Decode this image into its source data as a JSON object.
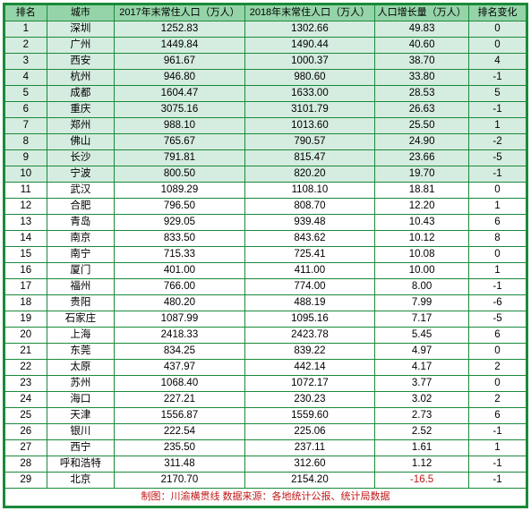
{
  "columns": [
    "排名",
    "城市",
    "2017年末常住人口（万人）",
    "2018年末常住人口（万人）",
    "人口增长量（万人）",
    "排名变化"
  ],
  "highlight_rows": 10,
  "neg_color": "#c01818",
  "rows": [
    [
      "1",
      "深圳",
      "1252.83",
      "1302.66",
      "49.83",
      "0"
    ],
    [
      "2",
      "广州",
      "1449.84",
      "1490.44",
      "40.60",
      "0"
    ],
    [
      "3",
      "西安",
      "961.67",
      "1000.37",
      "38.70",
      "4"
    ],
    [
      "4",
      "杭州",
      "946.80",
      "980.60",
      "33.80",
      "-1"
    ],
    [
      "5",
      "成都",
      "1604.47",
      "1633.00",
      "28.53",
      "5"
    ],
    [
      "6",
      "重庆",
      "3075.16",
      "3101.79",
      "26.63",
      "-1"
    ],
    [
      "7",
      "郑州",
      "988.10",
      "1013.60",
      "25.50",
      "1"
    ],
    [
      "8",
      "佛山",
      "765.67",
      "790.57",
      "24.90",
      "-2"
    ],
    [
      "9",
      "长沙",
      "791.81",
      "815.47",
      "23.66",
      "-5"
    ],
    [
      "10",
      "宁波",
      "800.50",
      "820.20",
      "19.70",
      "-1"
    ],
    [
      "11",
      "武汉",
      "1089.29",
      "1108.10",
      "18.81",
      "0"
    ],
    [
      "12",
      "合肥",
      "796.50",
      "808.70",
      "12.20",
      "1"
    ],
    [
      "13",
      "青岛",
      "929.05",
      "939.48",
      "10.43",
      "6"
    ],
    [
      "14",
      "南京",
      "833.50",
      "843.62",
      "10.12",
      "8"
    ],
    [
      "15",
      "南宁",
      "715.33",
      "725.41",
      "10.08",
      "0"
    ],
    [
      "16",
      "厦门",
      "401.00",
      "411.00",
      "10.00",
      "1"
    ],
    [
      "17",
      "福州",
      "766.00",
      "774.00",
      "8.00",
      "-1"
    ],
    [
      "18",
      "贵阳",
      "480.20",
      "488.19",
      "7.99",
      "-6"
    ],
    [
      "19",
      "石家庄",
      "1087.99",
      "1095.16",
      "7.17",
      "-5"
    ],
    [
      "20",
      "上海",
      "2418.33",
      "2423.78",
      "5.45",
      "6"
    ],
    [
      "21",
      "东莞",
      "834.25",
      "839.22",
      "4.97",
      "0"
    ],
    [
      "22",
      "太原",
      "437.97",
      "442.14",
      "4.17",
      "2"
    ],
    [
      "23",
      "苏州",
      "1068.40",
      "1072.17",
      "3.77",
      "0"
    ],
    [
      "24",
      "海口",
      "227.21",
      "230.23",
      "3.02",
      "2"
    ],
    [
      "25",
      "天津",
      "1556.87",
      "1559.60",
      "2.73",
      "6"
    ],
    [
      "26",
      "银川",
      "222.54",
      "225.06",
      "2.52",
      "-1"
    ],
    [
      "27",
      "西宁",
      "235.50",
      "237.11",
      "1.61",
      "1"
    ],
    [
      "28",
      "呼和浩特",
      "311.48",
      "312.60",
      "1.12",
      "-1"
    ],
    [
      "29",
      "北京",
      "2170.70",
      "2154.20",
      "-16.5",
      "-1"
    ]
  ],
  "footer": "制图：川渝横贯线 数据来源：各地统计公报、统计局数据"
}
